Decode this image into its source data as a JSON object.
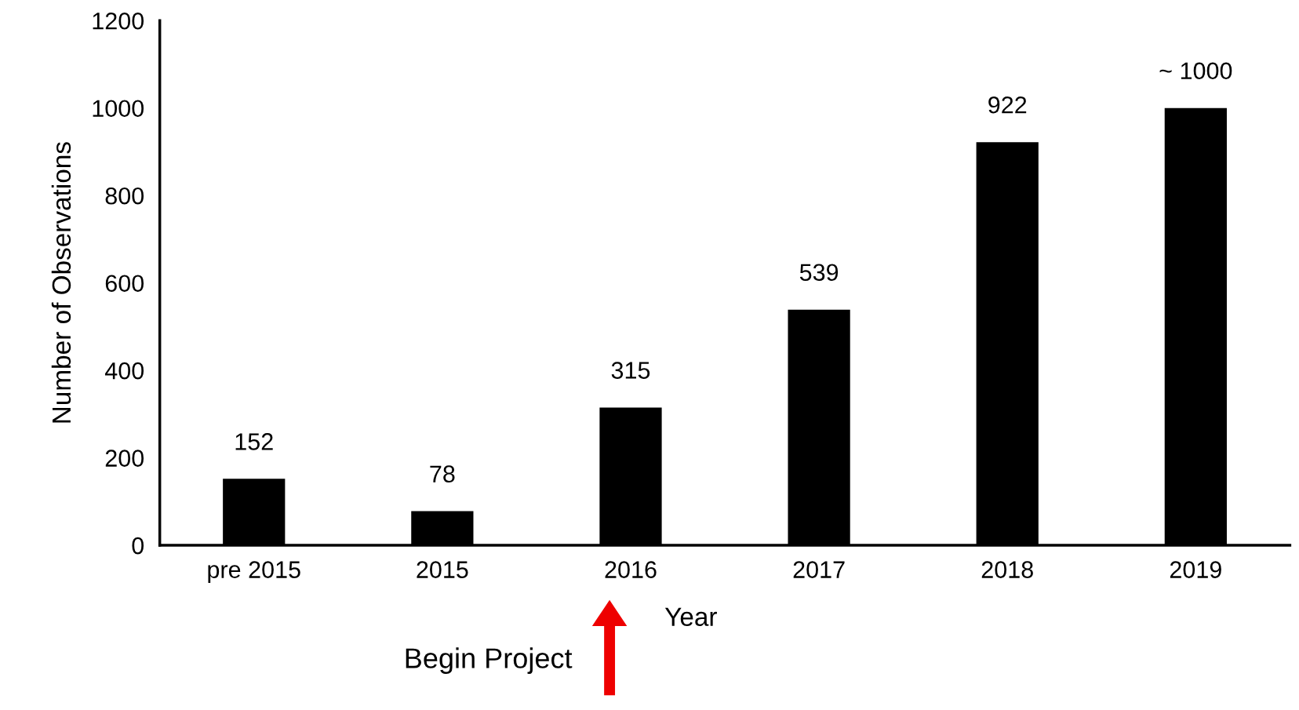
{
  "chart_data": {
    "type": "bar",
    "categories": [
      "pre 2015",
      "2015",
      "2016",
      "2017",
      "2018",
      "2019"
    ],
    "values": [
      152,
      78,
      315,
      539,
      922,
      1000
    ],
    "value_labels": [
      "152",
      "78",
      "315",
      "539",
      "922",
      "~ 1000"
    ],
    "color": "#000000",
    "xlabel": "Year",
    "ylabel": "Number of Observations",
    "ylim": [
      0,
      1200
    ],
    "yticks": [
      0,
      200,
      400,
      600,
      800,
      1000,
      1200
    ],
    "grid": false,
    "legend": false,
    "annotations": [
      "Begin Project"
    ]
  }
}
